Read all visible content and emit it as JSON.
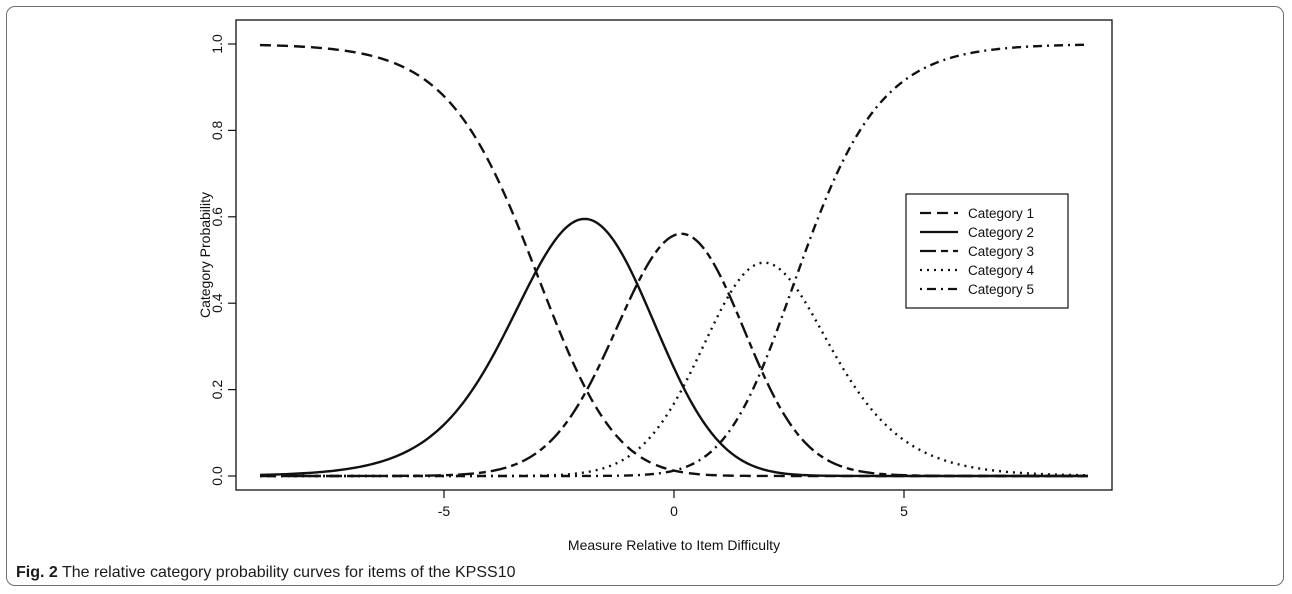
{
  "figure": {
    "caption_label": "Fig. 2",
    "caption_text": "The relative category probability curves for items of the KPSS10"
  },
  "chart_data": {
    "type": "line",
    "title": "",
    "xlabel": "Measure Relative to Item Difficulty",
    "ylabel": "Category Probability",
    "xlim": [
      -9,
      9
    ],
    "ylim": [
      0,
      1
    ],
    "xticks": [
      -5,
      0,
      5
    ],
    "xtick_labels": [
      "-5",
      "0",
      "5"
    ],
    "yticks": [
      0,
      0.2,
      0.4,
      0.6,
      0.8,
      1
    ],
    "ytick_labels": [
      "0.0",
      "0.2",
      "0.4",
      "0.6",
      "0.8",
      "1.0"
    ],
    "grid": false,
    "legend_position": "right",
    "model": {
      "type": "rating-scale (Andrich)",
      "thresholds": [
        -3.0,
        -0.8,
        1.2,
        2.6
      ]
    },
    "x": [
      -9,
      -8,
      -7,
      -6,
      -5,
      -4,
      -3,
      -2,
      -1,
      0,
      1,
      2,
      3,
      4,
      5,
      6,
      7,
      8,
      9
    ],
    "series": [
      {
        "name": "Category 1",
        "dash": "long-dash",
        "values": [
          1.0,
          0.99,
          0.98,
          0.94,
          0.86,
          0.68,
          0.41,
          0.18,
          0.06,
          0.02,
          0.0,
          0.0,
          0.0,
          0.0,
          0.0,
          0.0,
          0.0,
          0.0,
          0.0
        ]
      },
      {
        "name": "Category 2",
        "dash": "solid",
        "values": [
          0.0,
          0.01,
          0.02,
          0.05,
          0.12,
          0.28,
          0.47,
          0.6,
          0.53,
          0.29,
          0.09,
          0.02,
          0.0,
          0.0,
          0.0,
          0.0,
          0.0,
          0.0,
          0.0
        ]
      },
      {
        "name": "Category 3",
        "dash": "long-short-dash",
        "values": [
          0.0,
          0.0,
          0.0,
          0.0,
          0.0,
          0.01,
          0.04,
          0.19,
          0.43,
          0.56,
          0.48,
          0.27,
          0.1,
          0.02,
          0.0,
          0.0,
          0.0,
          0.0,
          0.0
        ]
      },
      {
        "name": "Category 4",
        "dash": "dotted",
        "values": [
          0.0,
          0.0,
          0.0,
          0.0,
          0.0,
          0.0,
          0.0,
          0.01,
          0.05,
          0.14,
          0.31,
          0.44,
          0.4,
          0.25,
          0.12,
          0.05,
          0.02,
          0.01,
          0.0
        ]
      },
      {
        "name": "Category 5",
        "dash": "dot-dash",
        "values": [
          0.0,
          0.0,
          0.0,
          0.0,
          0.0,
          0.0,
          0.0,
          0.0,
          0.0,
          0.02,
          0.11,
          0.27,
          0.5,
          0.74,
          0.89,
          0.95,
          0.98,
          0.99,
          1.0
        ]
      }
    ],
    "legend": [
      "Category 1",
      "Category 2",
      "Category 3",
      "Category 4",
      "Category 5"
    ]
  }
}
